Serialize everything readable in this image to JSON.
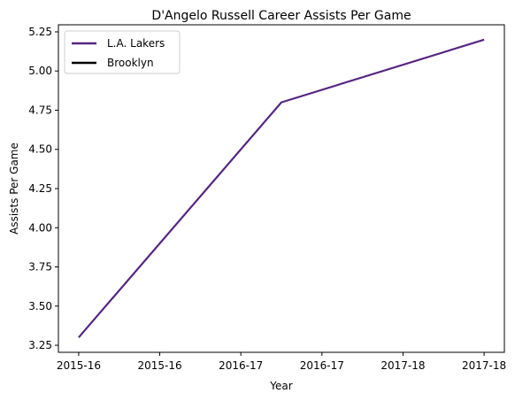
{
  "chart_data": {
    "type": "line",
    "title": "D'Angelo Russell Career Assists Per Game",
    "xlabel": "Year",
    "ylabel": "Assists Per Game",
    "x_ticks": [
      "2015-16",
      "2015-16",
      "2016-17",
      "2016-17",
      "2017-18",
      "2017-18"
    ],
    "x_tick_values": [
      0,
      0.4,
      0.8,
      1.2,
      1.6,
      2.0
    ],
    "x_range": [
      -0.1,
      2.1
    ],
    "y_ticks": [
      3.25,
      3.5,
      3.75,
      4.0,
      4.25,
      4.5,
      4.75,
      5.0,
      5.25
    ],
    "ylim": [
      3.205,
      5.295
    ],
    "x_categories": [
      "2015-16",
      "2016-17",
      "2017-18"
    ],
    "series": [
      {
        "name": "L.A. Lakers",
        "color": "#552583",
        "x": [
          0,
          1,
          2
        ],
        "y": [
          3.3,
          4.8,
          5.2
        ]
      },
      {
        "name": "Brooklyn",
        "color": "#000000",
        "x": [],
        "y": []
      }
    ],
    "legend_position": "upper-left",
    "grid": false
  }
}
